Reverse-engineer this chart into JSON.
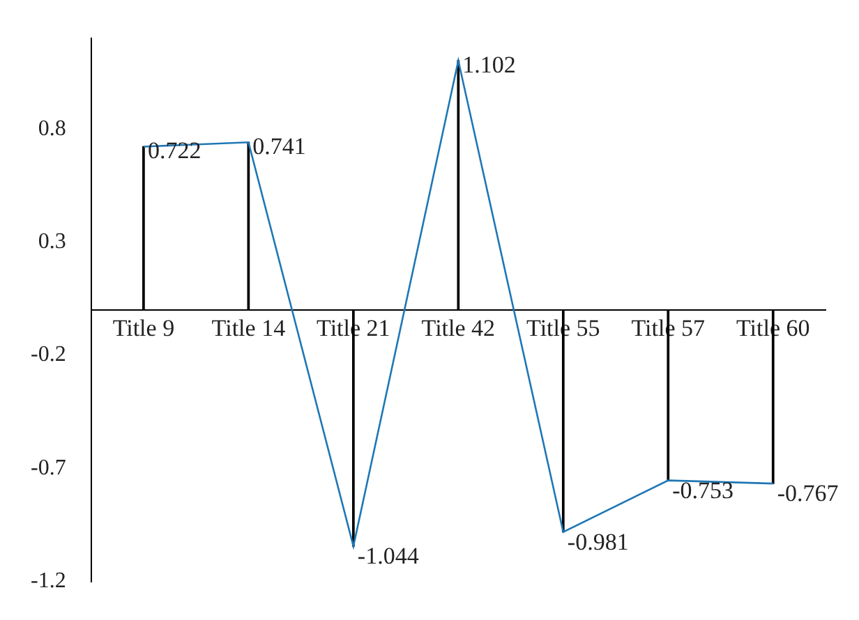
{
  "chart_data": {
    "type": "line",
    "categories": [
      "Title 9",
      "Title 14",
      "Title 21",
      "Title 42",
      "Title 55",
      "Title 57",
      "Title 60"
    ],
    "series": [
      {
        "color": "#1f77b4",
        "values": [
          0.722,
          0.741,
          -1.044,
          1.102,
          -0.981,
          -0.753,
          -0.767
        ],
        "value_labels": [
          "0.722",
          "0.741",
          "-1.044",
          "1.102",
          "-0.981",
          "-0.753",
          "-0.767"
        ]
      },
      {
        "type": "bar",
        "color": "#000000",
        "values": [
          0.722,
          0.741,
          -1.044,
          1.102,
          -0.981,
          -0.753,
          -0.767
        ]
      }
    ],
    "ylim": [
      -1.2,
      1.2
    ],
    "yticks": [
      -1.2,
      -0.7,
      -0.2,
      0.3,
      0.8
    ],
    "marker": "none"
  }
}
